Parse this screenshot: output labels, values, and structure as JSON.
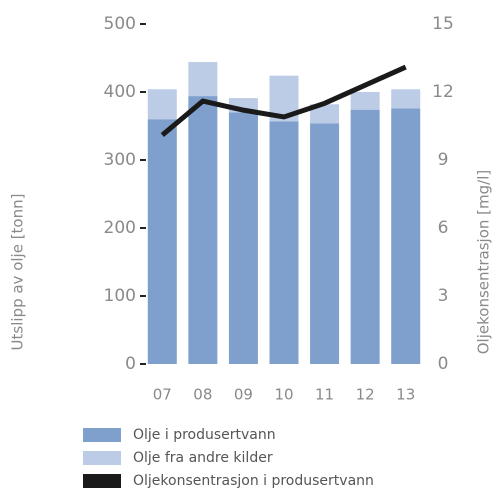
{
  "chart_data": {
    "type": "bar",
    "stacked": true,
    "y_label": "Utslipp av olje [tonn]",
    "y2_label": "Oljekonsentrasjon [mg/l]",
    "categories": [
      "07",
      "08",
      "09",
      "10",
      "11",
      "12",
      "13"
    ],
    "series": [
      {
        "name": "Olje i produsertvann",
        "color": "#7f9fcc",
        "values": [
          360,
          394,
          370,
          357,
          354,
          374,
          376
        ]
      },
      {
        "name": "Olje fra andre kilder",
        "color": "#bccbe6",
        "values": [
          44,
          50,
          21,
          67,
          28,
          26,
          28
        ]
      },
      {
        "name": "Oljekonsentrasjon i produsertvann",
        "color": "#1a1a1a",
        "type": "line",
        "axis": "y2",
        "values": [
          10.1,
          11.6,
          11.2,
          10.9,
          11.5,
          12.3,
          13.1
        ]
      }
    ],
    "ylim": [
      0,
      500
    ],
    "yticks": [
      0,
      100,
      200,
      300,
      400,
      500
    ],
    "y2lim": [
      0,
      15
    ],
    "y2ticks": [
      0,
      3,
      6,
      9,
      12,
      15
    ]
  }
}
